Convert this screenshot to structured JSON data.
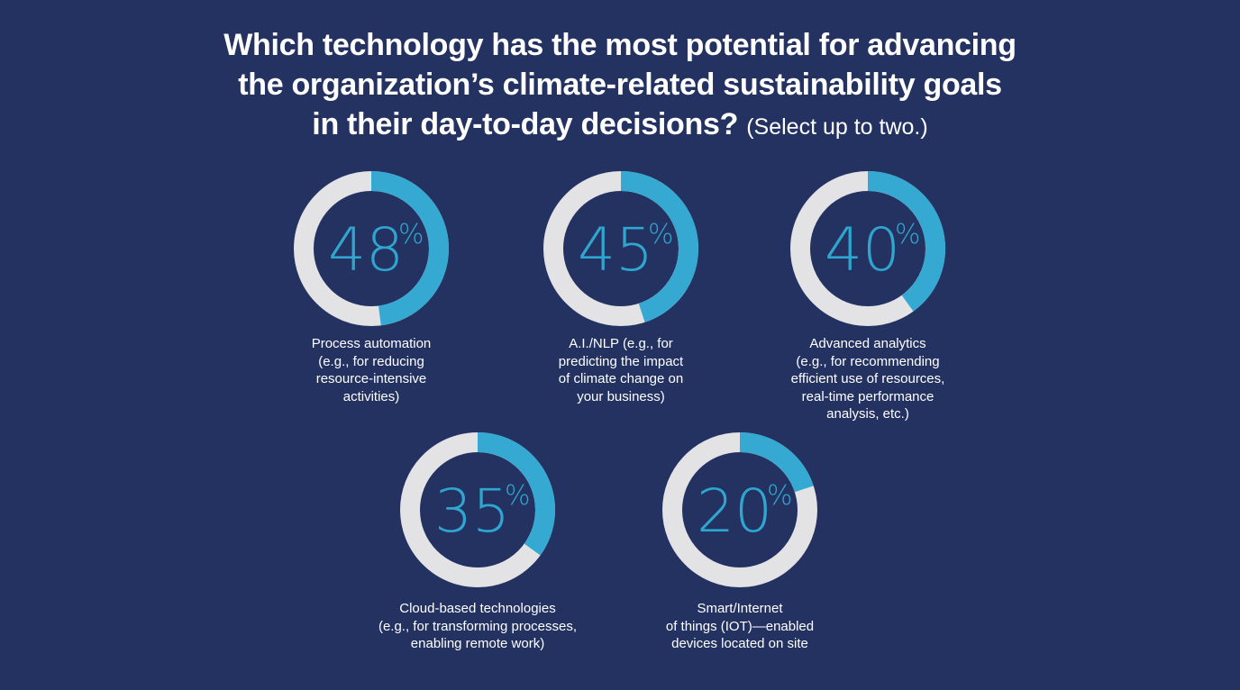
{
  "title": {
    "line1": "Which technology has the most potential for advancing",
    "line2": "the organization’s climate-related sustainability goals",
    "line3": "in their day-to-day decisions?",
    "note": "(Select up to two.)"
  },
  "colors": {
    "background": "#243262",
    "accent": "#35a9d1",
    "track": "#e3e3e6",
    "text": "#ffffff"
  },
  "chart_data": {
    "type": "donut",
    "unit": "%",
    "items": [
      {
        "label": "Process automation\n(e.g., for reducing\nresource-intensive\nactivities)",
        "value": 48,
        "display": "48"
      },
      {
        "label": "A.I./NLP (e.g., for\npredicting the impact\nof climate change on\nyour business)",
        "value": 45,
        "display": "45"
      },
      {
        "label": "Advanced analytics\n(e.g., for recommending\nefficient use of resources,\nreal-time performance\nanalysis, etc.)",
        "value": 40,
        "display": "40"
      },
      {
        "label": "Cloud-based technologies\n(e.g., for transforming processes,\nenabling remote work)",
        "value": 35,
        "display": "35"
      },
      {
        "label": "Smart/Internet\nof things (IOT)—enabled\ndevices located on site",
        "value": 20,
        "display": "20"
      }
    ]
  }
}
